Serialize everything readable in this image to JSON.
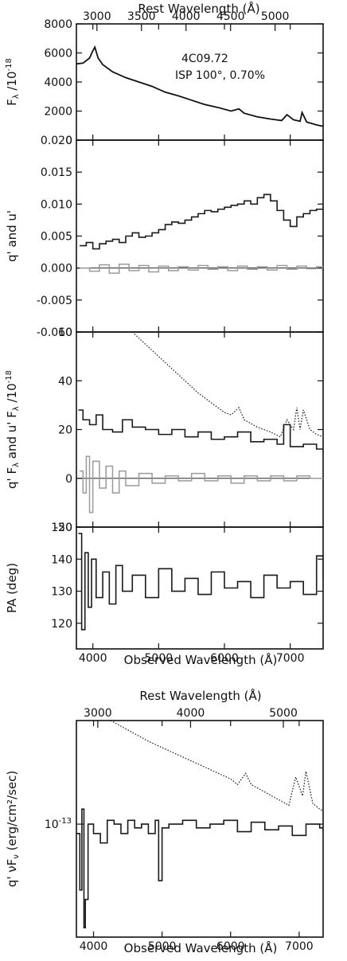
{
  "figure": {
    "source_name": "4C09.72",
    "isp_label": "ISP 100°, 0.70%"
  },
  "chart_data": [
    {
      "id": "panel-flux",
      "type": "line",
      "title": "",
      "xlabel": "",
      "ylabel": "F_λ /10^-18",
      "top_axis_label": "Rest Wavelength (Å)",
      "xlim": [
        3750,
        7500
      ],
      "ylim": [
        0,
        8000
      ],
      "x_ticks": [
        4000,
        5000,
        6000,
        7000
      ],
      "y_ticks": [
        0,
        2000,
        4000,
        6000,
        8000
      ],
      "top_ticks": [
        "3000",
        "3500",
        "4000",
        "4500",
        "5000"
      ],
      "series": [
        {
          "style": "solid",
          "x": [
            3750,
            3850,
            3950,
            4000,
            4030,
            4080,
            4150,
            4300,
            4500,
            4700,
            4900,
            5100,
            5300,
            5500,
            5700,
            5900,
            6100,
            6220,
            6300,
            6500,
            6700,
            6870,
            6950,
            7050,
            7150,
            7180,
            7250,
            7400,
            7500
          ],
          "y": [
            5250,
            5300,
            5650,
            6150,
            6400,
            5650,
            5200,
            4700,
            4300,
            4000,
            3700,
            3300,
            3050,
            2750,
            2450,
            2250,
            2000,
            2150,
            1850,
            1600,
            1450,
            1350,
            1750,
            1400,
            1300,
            1900,
            1250,
            1050,
            950
          ]
        }
      ]
    },
    {
      "id": "panel-qu",
      "type": "line",
      "title": "",
      "xlabel": "",
      "ylabel": "q' and u'",
      "xlim": [
        3750,
        7500
      ],
      "ylim": [
        -0.01,
        0.02
      ],
      "x_ticks": [
        4000,
        5000,
        6000,
        7000
      ],
      "y_ticks": [
        "-0.010",
        "-0.005",
        "0.000",
        "0.005",
        "0.010",
        "0.015",
        "0.020"
      ],
      "zero_line": 0,
      "series": [
        {
          "style": "dark-step",
          "x": [
            3800,
            3900,
            4000,
            4100,
            4200,
            4300,
            4400,
            4500,
            4600,
            4700,
            4800,
            4900,
            5000,
            5100,
            5200,
            5300,
            5400,
            5500,
            5600,
            5700,
            5800,
            5900,
            6000,
            6100,
            6200,
            6300,
            6400,
            6500,
            6600,
            6700,
            6800,
            6900,
            7000,
            7100,
            7200,
            7300,
            7400,
            7500
          ],
          "y": [
            0.0035,
            0.004,
            0.003,
            0.0038,
            0.0042,
            0.0045,
            0.004,
            0.005,
            0.0055,
            0.0048,
            0.005,
            0.0055,
            0.006,
            0.0068,
            0.0072,
            0.007,
            0.0075,
            0.008,
            0.0085,
            0.009,
            0.0088,
            0.0092,
            0.0095,
            0.0098,
            0.01,
            0.0105,
            0.01,
            0.011,
            0.0115,
            0.0105,
            0.009,
            0.0075,
            0.0065,
            0.008,
            0.0085,
            0.009,
            0.0092,
            0.0095
          ]
        },
        {
          "style": "gray-step",
          "x": [
            3800,
            3950,
            4100,
            4250,
            4400,
            4550,
            4700,
            4850,
            5000,
            5150,
            5300,
            5450,
            5600,
            5750,
            5900,
            6050,
            6200,
            6350,
            6500,
            6650,
            6800,
            6950,
            7100,
            7250,
            7400,
            7500
          ],
          "y": [
            0.0,
            -0.0005,
            0.0005,
            -0.0008,
            0.0006,
            -0.0004,
            0.0004,
            -0.0006,
            0.0003,
            -0.0004,
            0.0002,
            -0.0003,
            0.0004,
            -0.0002,
            0.0002,
            -0.0004,
            0.0003,
            -0.0002,
            0.0002,
            -0.0003,
            0.0004,
            -0.0002,
            0.0003,
            -0.0001,
            0.0002,
            0.0
          ]
        }
      ]
    },
    {
      "id": "panel-qflux",
      "type": "line",
      "title": "",
      "xlabel": "",
      "ylabel": "q' F_λ and u' F_λ /10^-18",
      "xlim": [
        3750,
        7500
      ],
      "ylim": [
        -20,
        60
      ],
      "x_ticks": [
        4000,
        5000,
        6000,
        7000
      ],
      "y_ticks": [
        -20,
        0,
        20,
        40,
        60
      ],
      "zero_line": 0,
      "series": [
        {
          "style": "dotted",
          "x": [
            4600,
            4800,
            5000,
            5200,
            5400,
            5600,
            5800,
            6000,
            6100,
            6220,
            6300,
            6500,
            6700,
            6850,
            6950,
            7050,
            7100,
            7150,
            7200,
            7300,
            7400,
            7500
          ],
          "y": [
            60,
            55,
            50,
            45,
            40,
            35,
            31,
            27,
            26,
            29,
            24,
            21,
            19,
            17,
            24,
            20,
            29,
            20,
            28,
            20,
            18,
            17
          ]
        },
        {
          "style": "dark-step",
          "x": [
            3780,
            3850,
            3950,
            4050,
            4150,
            4300,
            4450,
            4600,
            4800,
            5000,
            5200,
            5400,
            5600,
            5800,
            6000,
            6200,
            6400,
            6600,
            6800,
            6900,
            7000,
            7200,
            7400,
            7500
          ],
          "y": [
            28,
            24,
            22,
            26,
            20,
            19,
            24,
            21,
            20,
            18,
            20,
            17,
            19,
            16,
            17,
            19,
            15,
            16,
            14,
            22,
            13,
            14,
            12,
            11
          ]
        },
        {
          "style": "gray-step",
          "x": [
            3800,
            3850,
            3900,
            3950,
            4000,
            4100,
            4200,
            4300,
            4400,
            4500,
            4700,
            4900,
            5100,
            5300,
            5500,
            5700,
            5900,
            6100,
            6300,
            6500,
            6700,
            6900,
            7100,
            7300,
            7500
          ],
          "y": [
            3,
            -6,
            9,
            -14,
            7,
            -4,
            5,
            -6,
            3,
            -3,
            2,
            -2,
            1,
            -1,
            2,
            -1,
            1,
            -2,
            1,
            -1,
            1,
            -1,
            1,
            0,
            0
          ]
        }
      ]
    },
    {
      "id": "panel-pa",
      "type": "line",
      "title": "",
      "xlabel": "Observed Wavelength (Å)",
      "ylabel": "PA (deg)",
      "xlim": [
        3750,
        7500
      ],
      "ylim": [
        112,
        150
      ],
      "x_ticks": [
        4000,
        5000,
        6000,
        7000
      ],
      "y_ticks": [
        120,
        130,
        140,
        150
      ],
      "series": [
        {
          "style": "dark-step",
          "x": [
            3780,
            3830,
            3880,
            3930,
            3980,
            4050,
            4150,
            4250,
            4350,
            4450,
            4600,
            4800,
            5000,
            5200,
            5400,
            5600,
            5800,
            6000,
            6200,
            6400,
            6600,
            6800,
            7000,
            7200,
            7400,
            7500
          ],
          "y": [
            148,
            118,
            142,
            125,
            140,
            128,
            136,
            126,
            138,
            130,
            135,
            128,
            137,
            130,
            134,
            129,
            136,
            131,
            133,
            128,
            135,
            131,
            133,
            129,
            141,
            134
          ]
        }
      ]
    },
    {
      "id": "panel-nufnu",
      "type": "line",
      "title": "",
      "xlabel": "Observed Wavelength (Å)",
      "ylabel": "q' νF_ν (erg/cm²/sec)",
      "top_axis_label": "Rest Wavelength (Å)",
      "y_scale": "log",
      "xlim": [
        3750,
        7350
      ],
      "x_ticks": [
        4000,
        5000,
        6000,
        7000
      ],
      "top_ticks": [
        "3000",
        "4000",
        "5000"
      ],
      "y_ticks": [
        "10^-13"
      ],
      "ylim_exponent": [
        -13.6,
        -12.45
      ],
      "series": [
        {
          "style": "dotted",
          "x": [
            4250,
            4500,
            4800,
            5100,
            5400,
            5700,
            6000,
            6100,
            6220,
            6300,
            6500,
            6700,
            6850,
            6950,
            7050,
            7100,
            7200,
            7300,
            7350
          ],
          "y_exponent": [
            -12.45,
            -12.5,
            -12.56,
            -12.61,
            -12.66,
            -12.71,
            -12.76,
            -12.79,
            -12.73,
            -12.79,
            -12.83,
            -12.87,
            -12.9,
            -12.75,
            -12.85,
            -12.72,
            -12.89,
            -12.92,
            -12.93
          ]
        },
        {
          "style": "dark-step",
          "x": [
            3750,
            3800,
            3830,
            3860,
            3880,
            3920,
            4000,
            4100,
            4200,
            4300,
            4400,
            4500,
            4600,
            4700,
            4800,
            4900,
            4950,
            5000,
            5100,
            5300,
            5500,
            5700,
            5900,
            6100,
            6300,
            6500,
            6700,
            6900,
            7100,
            7300,
            7350
          ],
          "y_exponent": [
            -13.05,
            -13.35,
            -12.92,
            -13.55,
            -13.4,
            -13.0,
            -13.05,
            -13.1,
            -12.98,
            -13.0,
            -13.05,
            -12.98,
            -13.02,
            -13.0,
            -13.05,
            -12.98,
            -13.3,
            -13.02,
            -13.0,
            -12.98,
            -13.02,
            -13.0,
            -12.98,
            -13.04,
            -12.99,
            -13.03,
            -13.01,
            -13.06,
            -13.0,
            -13.02,
            -13.03
          ]
        }
      ]
    }
  ],
  "bottom_panel_label": "Observed Wavelength (Å)"
}
